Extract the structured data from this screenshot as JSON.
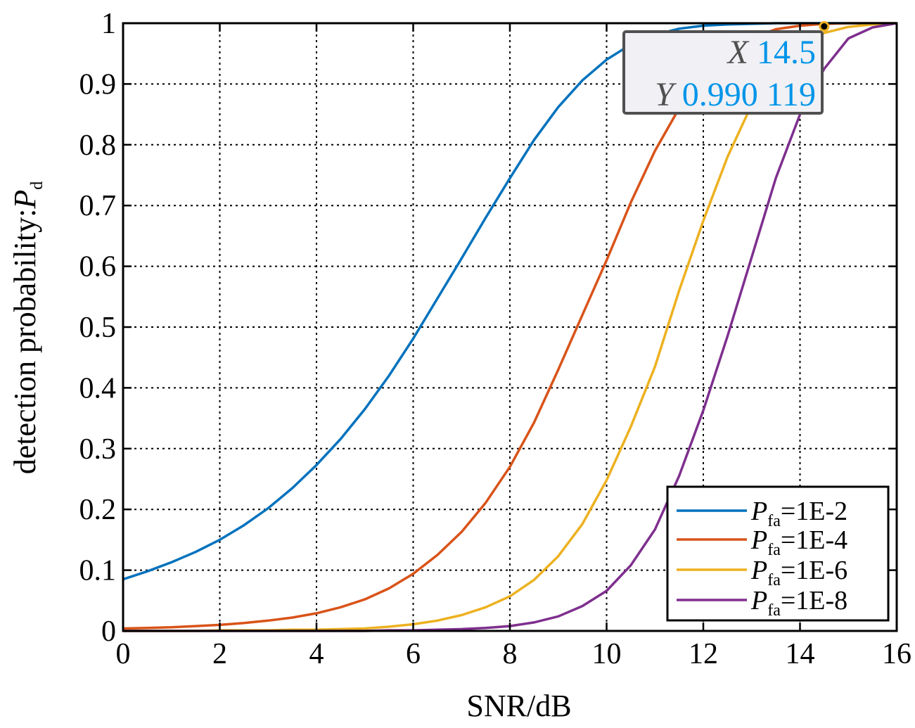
{
  "chart_data": {
    "type": "line",
    "xlabel": "SNR/dB",
    "ylabel_prefix": "detection probability:",
    "ylabel_symbol": "P",
    "ylabel_subscript": "d",
    "xlim": [
      0,
      16
    ],
    "ylim": [
      0,
      1
    ],
    "xticks": [
      0,
      2,
      4,
      6,
      8,
      10,
      12,
      14,
      16
    ],
    "xtick_labels": [
      "0",
      "2",
      "4",
      "6",
      "8",
      "10",
      "12",
      "14",
      "16"
    ],
    "yticks": [
      0,
      0.1,
      0.2,
      0.3,
      0.4,
      0.5,
      0.6,
      0.7,
      0.8,
      0.9,
      1
    ],
    "ytick_labels": [
      "0",
      "0.1",
      "0.2",
      "0.3",
      "0.4",
      "0.5",
      "0.6",
      "0.7",
      "0.8",
      "0.9",
      "1"
    ],
    "grid": true,
    "legend_position": "bottom-right",
    "x": [
      0,
      0.5,
      1,
      1.5,
      2,
      2.5,
      3,
      3.5,
      4,
      4.5,
      5,
      5.5,
      6,
      6.5,
      7,
      7.5,
      8,
      8.5,
      9,
      9.5,
      10,
      10.5,
      11,
      11.5,
      12,
      12.5,
      13,
      13.5,
      14,
      14.5,
      15,
      15.5,
      16
    ],
    "series": [
      {
        "symbol": "P",
        "subscript": "fa",
        "suffix": "=1E-2",
        "color": "#0072BD",
        "values": [
          0.085,
          0.098,
          0.113,
          0.13,
          0.15,
          0.174,
          0.202,
          0.235,
          0.273,
          0.316,
          0.365,
          0.42,
          0.481,
          0.547,
          0.613,
          0.68,
          0.745,
          0.808,
          0.862,
          0.906,
          0.94,
          0.965,
          0.981,
          0.991,
          0.996,
          0.998,
          0.999,
          1.0,
          1.0,
          1.0,
          1.0,
          1.0,
          1.0
        ]
      },
      {
        "symbol": "P",
        "subscript": "fa",
        "suffix": "=1E-4",
        "color": "#D95319",
        "values": [
          0.004,
          0.005,
          0.006,
          0.008,
          0.01,
          0.013,
          0.017,
          0.022,
          0.029,
          0.039,
          0.052,
          0.07,
          0.094,
          0.125,
          0.163,
          0.211,
          0.27,
          0.343,
          0.43,
          0.52,
          0.61,
          0.705,
          0.79,
          0.86,
          0.913,
          0.952,
          0.976,
          0.99,
          0.996,
          0.999,
          1.0,
          1.0,
          1.0
        ]
      },
      {
        "symbol": "P",
        "subscript": "fa",
        "suffix": "=1E-6",
        "color": "#EDB120",
        "values": [
          0.0,
          0.0,
          0.0,
          0.0,
          0.001,
          0.001,
          0.001,
          0.002,
          0.002,
          0.003,
          0.004,
          0.007,
          0.011,
          0.017,
          0.026,
          0.039,
          0.057,
          0.084,
          0.123,
          0.176,
          0.248,
          0.336,
          0.435,
          0.56,
          0.675,
          0.78,
          0.866,
          0.927,
          0.964,
          0.984,
          0.994,
          0.998,
          1.0
        ]
      },
      {
        "symbol": "P",
        "subscript": "fa",
        "suffix": "=1E-8",
        "color": "#7E2F8E",
        "values": [
          0.0,
          0.0,
          0.0,
          0.0,
          0.0,
          0.0,
          0.0,
          0.0,
          0.0,
          0.0,
          0.0,
          0.001,
          0.001,
          0.002,
          0.003,
          0.005,
          0.008,
          0.014,
          0.024,
          0.041,
          0.066,
          0.108,
          0.167,
          0.255,
          0.363,
          0.485,
          0.615,
          0.745,
          0.85,
          0.925,
          0.975,
          0.993,
          1.0
        ]
      }
    ],
    "datatip": {
      "x_label": "X",
      "x_value": "14.5",
      "y_label": "Y",
      "y_value": "0.990 119",
      "point": [
        14.5,
        0.990119
      ]
    }
  },
  "colors": {
    "value_text": "#0095E8",
    "grid": "#000000",
    "tip_background": "#F0F0F5"
  }
}
